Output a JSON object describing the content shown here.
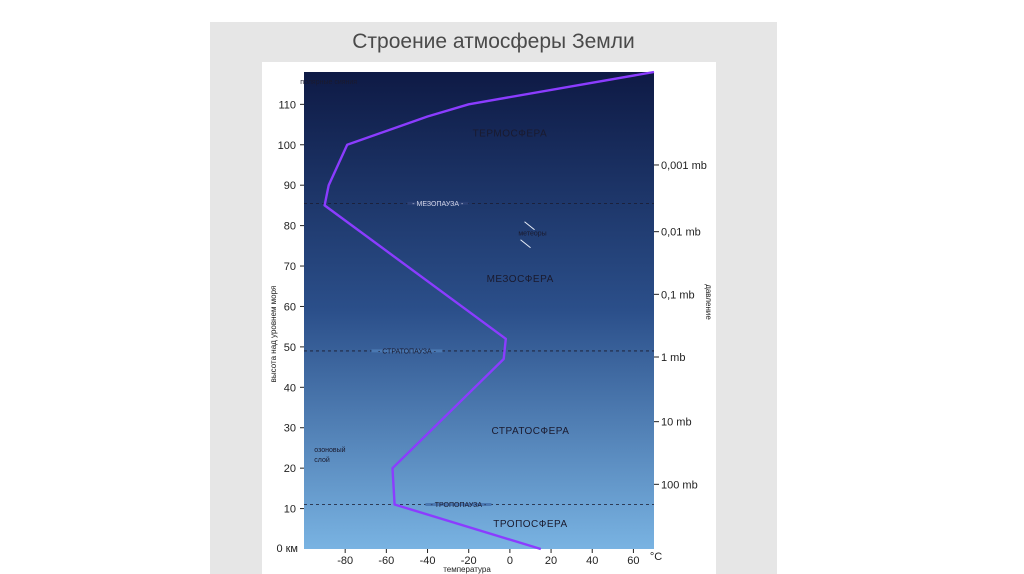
{
  "slide": {
    "title": "Строение атмосферы Земли"
  },
  "chart_data": {
    "type": "line",
    "xlabel": "температура",
    "ylabel": "высота над уровнем моря",
    "right_axis_label": "давление",
    "x_unit": "°С",
    "y_unit_label": "0 км",
    "xlim": [
      -100,
      70
    ],
    "ylim": [
      0,
      118
    ],
    "x_ticks": [
      -80,
      -60,
      -40,
      -20,
      0,
      20,
      40,
      60
    ],
    "y_ticks": [
      10,
      20,
      30,
      40,
      50,
      60,
      70,
      80,
      90,
      100,
      110
    ],
    "pressure_ticks": [
      {
        "label": "0,001 mb",
        "altitude": 95
      },
      {
        "label": "0,01 mb",
        "altitude": 78.5
      },
      {
        "label": "0,1 mb",
        "altitude": 63
      },
      {
        "label": "1 mb",
        "altitude": 47.5
      },
      {
        "label": "10 mb",
        "altitude": 31.5
      },
      {
        "label": "100 mb",
        "altitude": 16
      }
    ],
    "series": [
      {
        "color": "#8b3cff",
        "points": [
          {
            "t": 15,
            "h": 0
          },
          {
            "t": -56,
            "h": 11
          },
          {
            "t": -57,
            "h": 20
          },
          {
            "t": -3,
            "h": 47
          },
          {
            "t": -2,
            "h": 52
          },
          {
            "t": -90,
            "h": 85
          },
          {
            "t": -88,
            "h": 90
          },
          {
            "t": -79,
            "h": 100
          },
          {
            "t": -40,
            "h": 107
          },
          {
            "t": -20,
            "h": 110
          },
          {
            "t": 70,
            "h": 118
          }
        ]
      }
    ],
    "boundaries": [
      {
        "label": "МЕЗОПАУЗА",
        "altitude": 85.5,
        "t": -35
      },
      {
        "label": "СТРАТОПАУЗА",
        "altitude": 49,
        "t": -50
      },
      {
        "label": "ТРОПОПАУЗА",
        "altitude": 11,
        "t": -25
      }
    ],
    "layers": [
      {
        "label": "ТЕРМОСФЕРА",
        "altitude": 102,
        "t": 0
      },
      {
        "label": "МЕЗОСФЕРА",
        "altitude": 66,
        "t": 5
      },
      {
        "label": "СТРАТОСФЕРА",
        "altitude": 28.5,
        "t": 10
      },
      {
        "label": "ТРОПОСФЕРА",
        "altitude": 5.5,
        "t": 10
      }
    ],
    "annotations": [
      {
        "label": "полярные сияния",
        "altitude": 115,
        "t": -88
      },
      {
        "label": "метеоры",
        "altitude": 77.5,
        "t": 11
      },
      {
        "label": "озоновый",
        "altitude": 24,
        "t": -95
      },
      {
        "label": "слой",
        "altitude": 21.5,
        "t": -95
      }
    ],
    "gradient": {
      "top": "#0e1a45",
      "middle": "#2b4f8a",
      "bottom": "#79b3e2"
    }
  }
}
